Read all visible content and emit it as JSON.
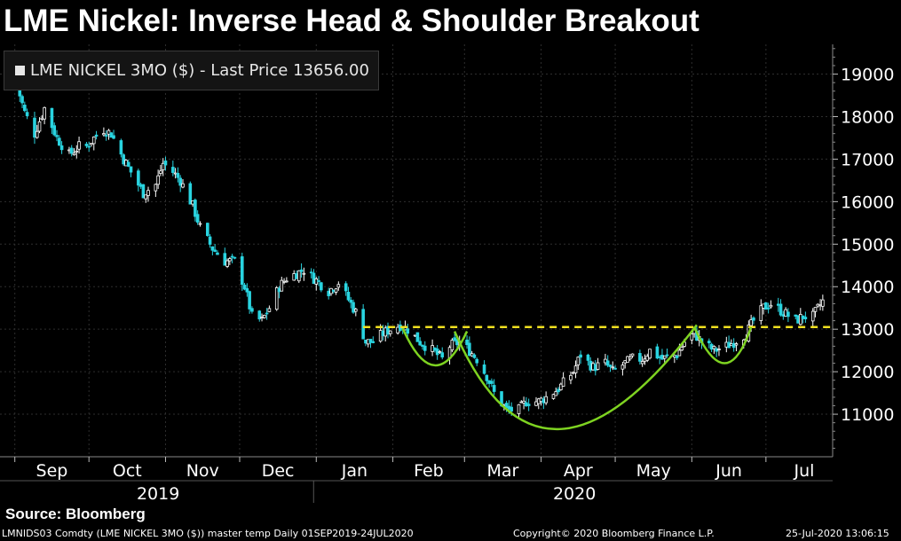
{
  "title": "LME Nickel: Inverse Head & Shoulder Breakout",
  "legend": {
    "label": "LME NICKEL 3MO ($) - Last Price 13656.00"
  },
  "source": "Source: Bloomberg",
  "footer": {
    "left": "LMNIDS03 Comdty (LME NICKEL   3MO ($)) master temp  Daily 01SEP2019-24JUL2020",
    "center": "Copyright© 2020 Bloomberg Finance L.P.",
    "right": "25-Jul-2020 13:06:15"
  },
  "colors": {
    "up": "#ffffff",
    "down": "#29d4e0",
    "neckline": "#f0e020",
    "pattern": "#7ed321",
    "grid": "#2e2e2e",
    "background": "#000000"
  },
  "chart_data": {
    "type": "candlestick",
    "series_name": "LME NICKEL 3MO ($)",
    "last_price": 13656.0,
    "ylim": [
      10000,
      19700
    ],
    "yticks": [
      11000,
      12000,
      13000,
      14000,
      15000,
      16000,
      17000,
      18000,
      19000
    ],
    "y_tick_labels": [
      "11000",
      "12000",
      "13000",
      "14000",
      "15000",
      "16000",
      "17000",
      "18000",
      "19000"
    ],
    "month_labels": [
      "Sep",
      "Oct",
      "Nov",
      "Dec",
      "Jan",
      "Feb",
      "Mar",
      "Apr",
      "May",
      "Jun",
      "Jul"
    ],
    "year_labels": [
      "2019",
      "2020"
    ],
    "grid": true,
    "legend_position": "top-left",
    "neckline_level": 13050,
    "close_path": [
      [
        "2019-09-02",
        18700
      ],
      [
        "2019-09-05",
        18100
      ],
      [
        "2019-09-09",
        17600
      ],
      [
        "2019-09-13",
        18200
      ],
      [
        "2019-09-18",
        17500
      ],
      [
        "2019-09-23",
        17100
      ],
      [
        "2019-09-27",
        17300
      ],
      [
        "2019-09-30",
        17300
      ],
      [
        "2019-10-03",
        17500
      ],
      [
        "2019-10-07",
        17700
      ],
      [
        "2019-10-10",
        17600
      ],
      [
        "2019-10-15",
        17000
      ],
      [
        "2019-10-18",
        16700
      ],
      [
        "2019-10-23",
        16200
      ],
      [
        "2019-10-28",
        16400
      ],
      [
        "2019-10-31",
        16900
      ],
      [
        "2019-11-04",
        16700
      ],
      [
        "2019-11-07",
        16500
      ],
      [
        "2019-11-12",
        15900
      ],
      [
        "2019-11-15",
        15400
      ],
      [
        "2019-11-20",
        14900
      ],
      [
        "2019-11-25",
        14600
      ],
      [
        "2019-11-29",
        14600
      ],
      [
        "2019-12-03",
        14000
      ],
      [
        "2019-12-06",
        13300
      ],
      [
        "2019-12-10",
        13200
      ],
      [
        "2019-12-13",
        13500
      ],
      [
        "2019-12-17",
        14000
      ],
      [
        "2019-12-20",
        14200
      ],
      [
        "2019-12-27",
        14400
      ],
      [
        "2019-12-31",
        14200
      ],
      [
        "2020-01-06",
        13900
      ],
      [
        "2020-01-10",
        14100
      ],
      [
        "2020-01-14",
        13700
      ],
      [
        "2020-01-17",
        13400
      ],
      [
        "2020-01-21",
        12700
      ],
      [
        "2020-01-24",
        12700
      ],
      [
        "2020-01-28",
        12900
      ],
      [
        "2020-01-31",
        13000
      ],
      [
        "2020-02-04",
        13100
      ],
      [
        "2020-02-07",
        13000
      ],
      [
        "2020-02-12",
        12700
      ],
      [
        "2020-02-17",
        12500
      ],
      [
        "2020-02-21",
        12300
      ],
      [
        "2020-02-24",
        12600
      ],
      [
        "2020-02-28",
        12700
      ],
      [
        "2020-03-03",
        12500
      ],
      [
        "2020-03-06",
        12300
      ],
      [
        "2020-03-10",
        11900
      ],
      [
        "2020-03-13",
        11500
      ],
      [
        "2020-03-18",
        11100
      ],
      [
        "2020-03-23",
        11100
      ],
      [
        "2020-03-26",
        11300
      ],
      [
        "2020-03-31",
        11300
      ],
      [
        "2020-04-03",
        11400
      ],
      [
        "2020-04-08",
        11600
      ],
      [
        "2020-04-14",
        12000
      ],
      [
        "2020-04-17",
        12400
      ],
      [
        "2020-04-22",
        12100
      ],
      [
        "2020-04-27",
        12200
      ],
      [
        "2020-04-30",
        12000
      ],
      [
        "2020-05-05",
        12200
      ],
      [
        "2020-05-08",
        12300
      ],
      [
        "2020-05-12",
        12300
      ],
      [
        "2020-05-15",
        12500
      ],
      [
        "2020-05-20",
        12300
      ],
      [
        "2020-05-26",
        12400
      ],
      [
        "2020-05-29",
        12700
      ],
      [
        "2020-06-02",
        12900
      ],
      [
        "2020-06-05",
        12700
      ],
      [
        "2020-06-10",
        12500
      ],
      [
        "2020-06-15",
        12600
      ],
      [
        "2020-06-18",
        12700
      ],
      [
        "2020-06-23",
        12900
      ],
      [
        "2020-06-26",
        13200
      ],
      [
        "2020-06-30",
        13500
      ],
      [
        "2020-07-03",
        13600
      ],
      [
        "2020-07-08",
        13400
      ],
      [
        "2020-07-13",
        13200
      ],
      [
        "2020-07-16",
        13300
      ],
      [
        "2020-07-20",
        13300
      ],
      [
        "2020-07-24",
        13656
      ]
    ]
  }
}
